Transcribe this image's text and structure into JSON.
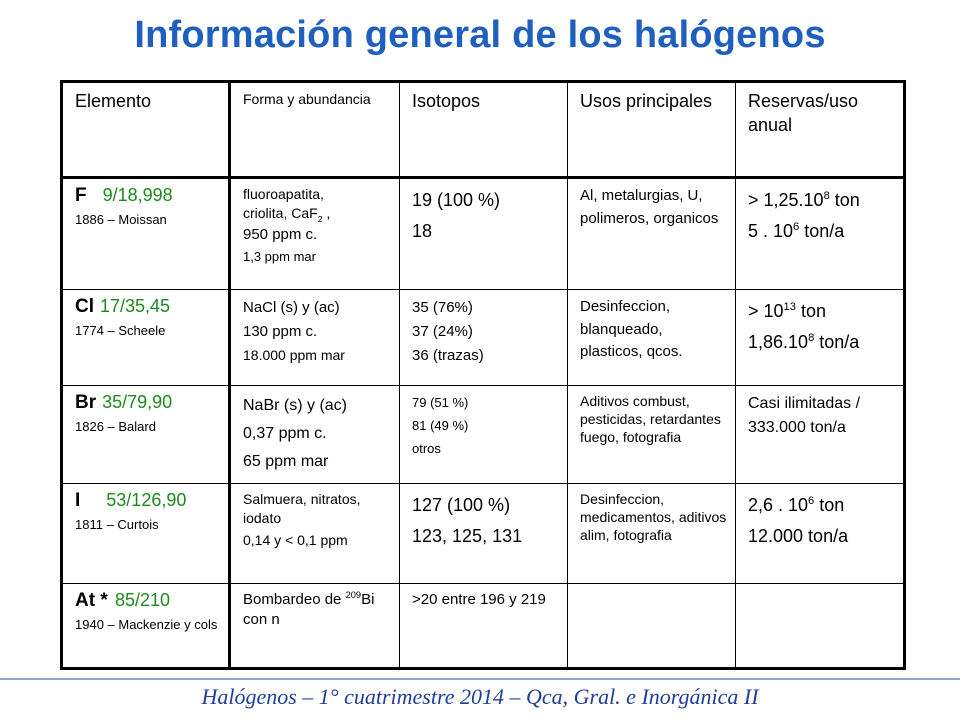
{
  "title": "Información general de los halógenos",
  "headers": {
    "elemento": "Elemento",
    "forma": "Forma y abundancia",
    "isotopos": "Isotopos",
    "usos": "Usos principales",
    "reservas": "Reservas/uso anual"
  },
  "rows": [
    {
      "symbol": "F",
      "numbers": "9/18,998",
      "discovery": "1886 – Moissan",
      "forma": {
        "l1": "fluoroapatita,",
        "l2a": "criolita, CaF",
        "l2sub": "2",
        "l2b": " ,",
        "l3": "950 ppm c.",
        "l4": "1,3 ppm mar"
      },
      "isotopos": [
        "19 (100 %)",
        "18"
      ],
      "usos": "Al, metalurgias, U, polimeros, organicos",
      "reservas": {
        "r1a": "> 1,25.10",
        "r1sup": "8",
        "r1b": " ton",
        "r2a": "5 . 10",
        "r2sup": "6",
        "r2b": " ton/a"
      }
    },
    {
      "symbol": "Cl",
      "numbers": "17/35,45",
      "discovery": "1774 – Scheele",
      "forma": [
        "NaCl (s) y (ac)",
        "130 ppm c.",
        "18.000 ppm mar"
      ],
      "isotopos": [
        "35 (76%)",
        "37 (24%)",
        "36 (trazas)"
      ],
      "usos": "Desinfeccion, blanqueado, plasticos, qcos.",
      "reservas": {
        "r1a": "> 10",
        "r1sup": "13",
        "r1b": " ton",
        "r2a": "1,86.10",
        "r2sup": "8",
        "r2b": " ton/a"
      }
    },
    {
      "symbol": "Br",
      "numbers": "35/79,90",
      "discovery": "1826 – Balard",
      "forma": [
        "NaBr (s) y (ac)",
        "0,37 ppm c.",
        "65 ppm mar"
      ],
      "isotopos": [
        "79 (51 %)",
        "81 (49 %)",
        "otros"
      ],
      "usos": "Aditivos combust, pesticidas, retardantes fuego, fotografia",
      "reservas": "Casi ilimitadas / 333.000 ton/a"
    },
    {
      "symbol": "I",
      "numbers": "53/126,90",
      "discovery": "1811 – Curtois",
      "forma": [
        "Salmuera, nitratos, iodato",
        "0,14  y < 0,1 ppm"
      ],
      "isotopos": [
        "127 (100 %)",
        "123, 125, 131"
      ],
      "usos": "Desinfeccion, medicamentos, aditivos alim, fotografia",
      "reservas": {
        "r1a": "2,6 . 10",
        "r1sup": "6",
        "r1b": " ton",
        "r2": "12.000 ton/a"
      }
    },
    {
      "symbol": "At",
      "star": " * ",
      "numbers": "85/210",
      "discovery": "1940 – Mackenzie y cols",
      "forma": {
        "pre": "Bombardeo de ",
        "sup": "209",
        "post": "Bi con n"
      },
      "isotopos": ">20 entre 196 y 219",
      "usos": "",
      "reservas": ""
    }
  ],
  "footer": "Halógenos  – 1° cuatrimestre 2014 – Qca, Gral. e Inorgánica II"
}
